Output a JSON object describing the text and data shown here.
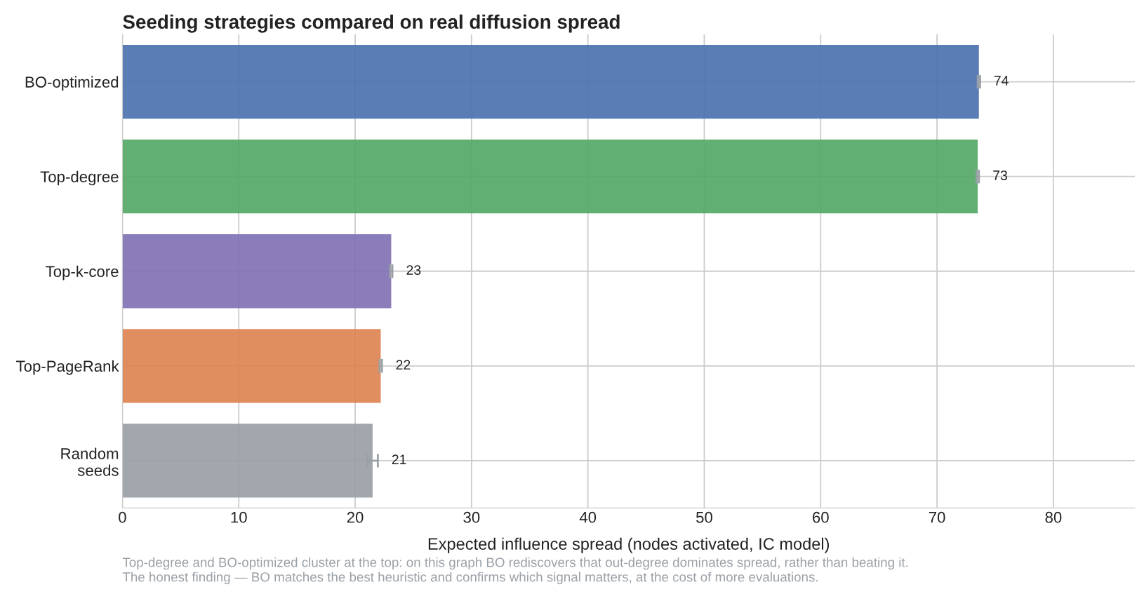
{
  "chart_data": {
    "type": "bar",
    "orientation": "horizontal",
    "title": "Seeding strategies compared on real diffusion spread",
    "xlabel": "Expected influence spread (nodes activated, IC model)",
    "categories": [
      "BO-optimized",
      "Top-degree",
      "Top-k-core",
      "Top-PageRank",
      "Random\nseeds"
    ],
    "values": [
      73.6,
      73.5,
      23.1,
      22.2,
      21.5
    ],
    "errors": [
      0.1,
      0.1,
      0.1,
      0.1,
      0.45
    ],
    "colors": [
      "#4c72b0",
      "#55a868",
      "#8172b3",
      "#dd8452",
      "#9aa0a6"
    ],
    "value_labels": [
      "74",
      "73",
      "23",
      "22",
      "21"
    ],
    "xlim": [
      0,
      87
    ],
    "xticks": [
      0,
      10,
      20,
      30,
      40,
      50,
      60,
      70,
      80
    ],
    "grid": true,
    "annotations": [
      "Top-degree and BO-optimized cluster at the top: on this graph BO rediscovers that out-degree dominates spread, rather than beating it.\nThe honest finding — BO matches the best heuristic and confirms which signal matters, at the cost of more evaluations."
    ]
  }
}
